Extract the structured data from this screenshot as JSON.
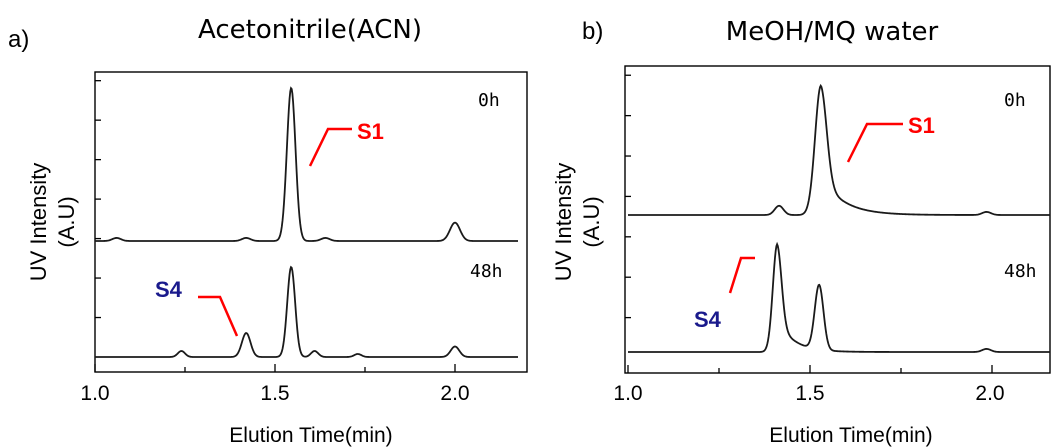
{
  "figure": {
    "panels": [
      {
        "panel_label": "a)",
        "title": "Acetonitrile(ACN)",
        "xlabel": "Elution Time(min)",
        "ylabel_line1": "UV Intensity",
        "ylabel_line2": "(A.U)",
        "xticks": [
          "1.0",
          "1.5",
          "2.0"
        ],
        "trace_labels": [
          "0h",
          "48h"
        ],
        "annotations": [
          {
            "text": "S1",
            "color": "#ff0000"
          },
          {
            "text": "S4",
            "color": "#1a1a8c"
          }
        ]
      },
      {
        "panel_label": "b)",
        "title": "MeOH/MQ water",
        "xlabel": "Elution Time(min)",
        "ylabel_line1": "UV Intensity",
        "ylabel_line2": "(A.U)",
        "xticks": [
          "1.0",
          "1.5",
          "2.0"
        ],
        "trace_labels": [
          "0h",
          "48h"
        ],
        "annotations": [
          {
            "text": "S1",
            "color": "#ff0000"
          },
          {
            "text": "S4",
            "color": "#1a1a8c"
          }
        ]
      }
    ]
  },
  "chart_data": [
    {
      "type": "line",
      "panel": "a",
      "title": "Acetonitrile(ACN)",
      "xlabel": "Elution Time(min)",
      "ylabel": "UV Intensity (A.U)",
      "xlim": [
        1.0,
        2.17
      ],
      "xticks": [
        1.0,
        1.5,
        2.0
      ],
      "series": [
        {
          "name": "0h",
          "baseline": 0.0,
          "peaks": [
            {
              "x": 1.06,
              "h": 0.02,
              "w": 0.012
            },
            {
              "x": 1.42,
              "h": 0.02,
              "w": 0.012
            },
            {
              "x": 1.545,
              "h": 1.0,
              "w": 0.012
            },
            {
              "x": 1.64,
              "h": 0.02,
              "w": 0.012
            },
            {
              "x": 2.0,
              "h": 0.12,
              "w": 0.014
            }
          ]
        },
        {
          "name": "48h",
          "baseline": 0.0,
          "peaks": [
            {
              "x": 1.24,
              "h": 0.04,
              "w": 0.01
            },
            {
              "x": 1.42,
              "h": 0.16,
              "w": 0.012
            },
            {
              "x": 1.545,
              "h": 0.6,
              "w": 0.011
            },
            {
              "x": 1.61,
              "h": 0.04,
              "w": 0.01
            },
            {
              "x": 1.73,
              "h": 0.02,
              "w": 0.01
            },
            {
              "x": 2.0,
              "h": 0.07,
              "w": 0.012
            }
          ]
        }
      ],
      "annotations": [
        {
          "text": "S1",
          "peak_x": 1.545,
          "trace": "0h"
        },
        {
          "text": "S4",
          "peak_x": 1.42,
          "trace": "48h"
        }
      ]
    },
    {
      "type": "line",
      "panel": "b",
      "title": "MeOH/MQ water",
      "xlabel": "Elution Time(min)",
      "ylabel": "UV Intensity (A.U)",
      "xlim": [
        1.0,
        2.17
      ],
      "xticks": [
        1.0,
        1.5,
        2.0
      ],
      "series": [
        {
          "name": "0h",
          "baseline": 0.0,
          "peaks": [
            {
              "x": 1.415,
              "h": 0.06,
              "w": 0.012
            },
            {
              "x": 1.53,
              "h": 0.84,
              "w": 0.016,
              "tail": 0.06
            },
            {
              "x": 1.985,
              "h": 0.02,
              "w": 0.012
            }
          ]
        },
        {
          "name": "48h",
          "baseline": 0.0,
          "peaks": [
            {
              "x": 1.41,
              "h": 0.7,
              "w": 0.012,
              "tail": 0.045
            },
            {
              "x": 1.525,
              "h": 0.42,
              "w": 0.012
            },
            {
              "x": 1.985,
              "h": 0.02,
              "w": 0.012
            }
          ]
        }
      ],
      "annotations": [
        {
          "text": "S1",
          "peak_x": 1.53,
          "trace": "0h"
        },
        {
          "text": "S4",
          "peak_x": 1.41,
          "trace": "48h"
        }
      ]
    }
  ]
}
